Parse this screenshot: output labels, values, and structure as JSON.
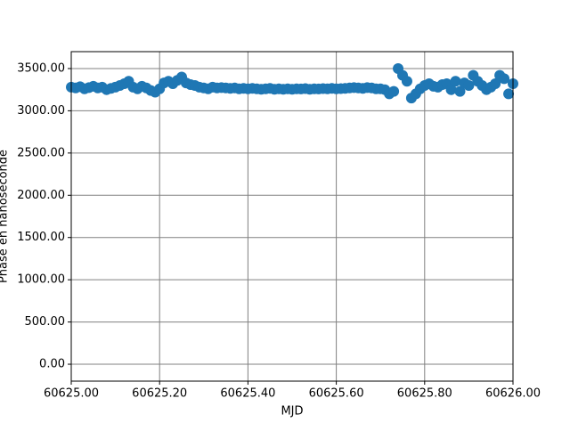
{
  "chart_data": {
    "type": "scatter",
    "xlabel": "MJD",
    "ylabel": "Phase en nanoseconde",
    "color": "#1f77b4",
    "grid": true,
    "xlim": [
      60625.0,
      60626.0
    ],
    "ylim": [
      -200,
      3700
    ],
    "xticks": [
      {
        "value": 60625.0,
        "label": "60625.00"
      },
      {
        "value": 60625.2,
        "label": "60625.20"
      },
      {
        "value": 60625.4,
        "label": "60625.40"
      },
      {
        "value": 60625.6,
        "label": "60625.60"
      },
      {
        "value": 60625.8,
        "label": "60625.80"
      },
      {
        "value": 60626.0,
        "label": "60626.00"
      }
    ],
    "yticks": [
      {
        "value": 0,
        "label": "0.00"
      },
      {
        "value": 500,
        "label": "500.00"
      },
      {
        "value": 1000,
        "label": "1000.00"
      },
      {
        "value": 1500,
        "label": "1500.00"
      },
      {
        "value": 2000,
        "label": "2000.00"
      },
      {
        "value": 2500,
        "label": "2500.00"
      },
      {
        "value": 3000,
        "label": "3000.00"
      },
      {
        "value": 3500,
        "label": "3500.00"
      }
    ],
    "x": [
      60625.0,
      60625.01,
      60625.02,
      60625.03,
      60625.04,
      60625.05,
      60625.06,
      60625.07,
      60625.08,
      60625.09,
      60625.1,
      60625.11,
      60625.12,
      60625.13,
      60625.14,
      60625.15,
      60625.16,
      60625.17,
      60625.18,
      60625.19,
      60625.2,
      60625.21,
      60625.22,
      60625.23,
      60625.24,
      60625.25,
      60625.26,
      60625.27,
      60625.28,
      60625.29,
      60625.3,
      60625.31,
      60625.32,
      60625.33,
      60625.34,
      60625.35,
      60625.36,
      60625.37,
      60625.38,
      60625.39,
      60625.4,
      60625.41,
      60625.42,
      60625.43,
      60625.44,
      60625.45,
      60625.46,
      60625.47,
      60625.48,
      60625.49,
      60625.5,
      60625.51,
      60625.52,
      60625.53,
      60625.54,
      60625.55,
      60625.56,
      60625.57,
      60625.58,
      60625.59,
      60625.6,
      60625.61,
      60625.62,
      60625.63,
      60625.64,
      60625.65,
      60625.66,
      60625.67,
      60625.68,
      60625.69,
      60625.7,
      60625.71,
      60625.72,
      60625.73,
      60625.74,
      60625.75,
      60625.76,
      60625.77,
      60625.78,
      60625.79,
      60625.8,
      60625.81,
      60625.82,
      60625.83,
      60625.84,
      60625.85,
      60625.86,
      60625.87,
      60625.88,
      60625.89,
      60625.9,
      60625.91,
      60625.92,
      60625.93,
      60625.94,
      60625.95,
      60625.96,
      60625.97,
      60625.98,
      60625.99,
      60626.0
    ],
    "values": [
      3280,
      3270,
      3285,
      3260,
      3275,
      3290,
      3270,
      3280,
      3250,
      3265,
      3280,
      3300,
      3320,
      3350,
      3280,
      3260,
      3290,
      3270,
      3240,
      3220,
      3260,
      3330,
      3350,
      3320,
      3360,
      3400,
      3330,
      3310,
      3300,
      3280,
      3270,
      3260,
      3280,
      3270,
      3275,
      3270,
      3265,
      3270,
      3260,
      3265,
      3260,
      3265,
      3260,
      3255,
      3260,
      3265,
      3255,
      3260,
      3255,
      3260,
      3255,
      3260,
      3258,
      3262,
      3255,
      3260,
      3258,
      3262,
      3260,
      3265,
      3260,
      3262,
      3265,
      3270,
      3275,
      3270,
      3265,
      3275,
      3270,
      3260,
      3260,
      3250,
      3200,
      3230,
      3500,
      3420,
      3350,
      3150,
      3200,
      3260,
      3300,
      3320,
      3290,
      3280,
      3310,
      3320,
      3250,
      3350,
      3230,
      3330,
      3300,
      3420,
      3350,
      3300,
      3250,
      3280,
      3320,
      3420,
      3380,
      3200,
      3320
    ]
  }
}
